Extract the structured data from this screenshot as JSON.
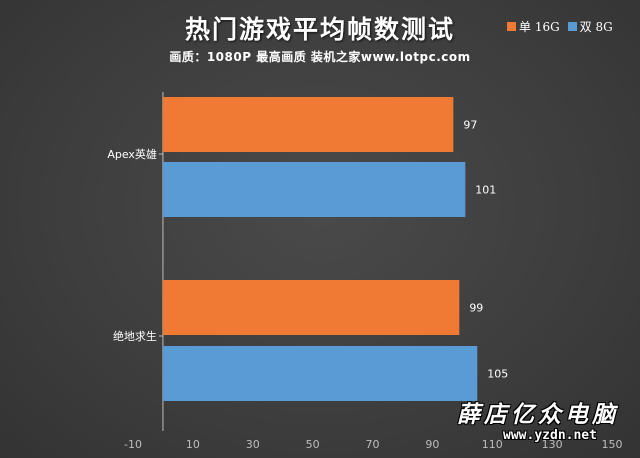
{
  "colors": {
    "single": "#f07a34",
    "dual": "#5b9bd5",
    "axis": "#bdbdbd",
    "text": "#ffffff"
  },
  "chart_data": {
    "type": "bar",
    "orientation": "horizontal",
    "title": "热门游戏平均帧数测试",
    "subtitle": "画质：1080P 最高画质 装机之家www.lotpc.com",
    "categories": [
      "Apex英雄",
      "绝地求生"
    ],
    "series": [
      {
        "name": "单 16G",
        "color": "#f07a34",
        "values": [
          97,
          99
        ]
      },
      {
        "name": "双 8G",
        "color": "#5b9bd5",
        "values": [
          101,
          105
        ]
      }
    ],
    "xlim": [
      -10,
      150
    ],
    "xticks": [
      -10,
      10,
      30,
      50,
      70,
      90,
      110,
      130,
      150
    ],
    "legend_position": "top-right",
    "grid": false
  },
  "watermark": {
    "name": "薛店亿众电脑",
    "url": "www.yzdn.net"
  }
}
